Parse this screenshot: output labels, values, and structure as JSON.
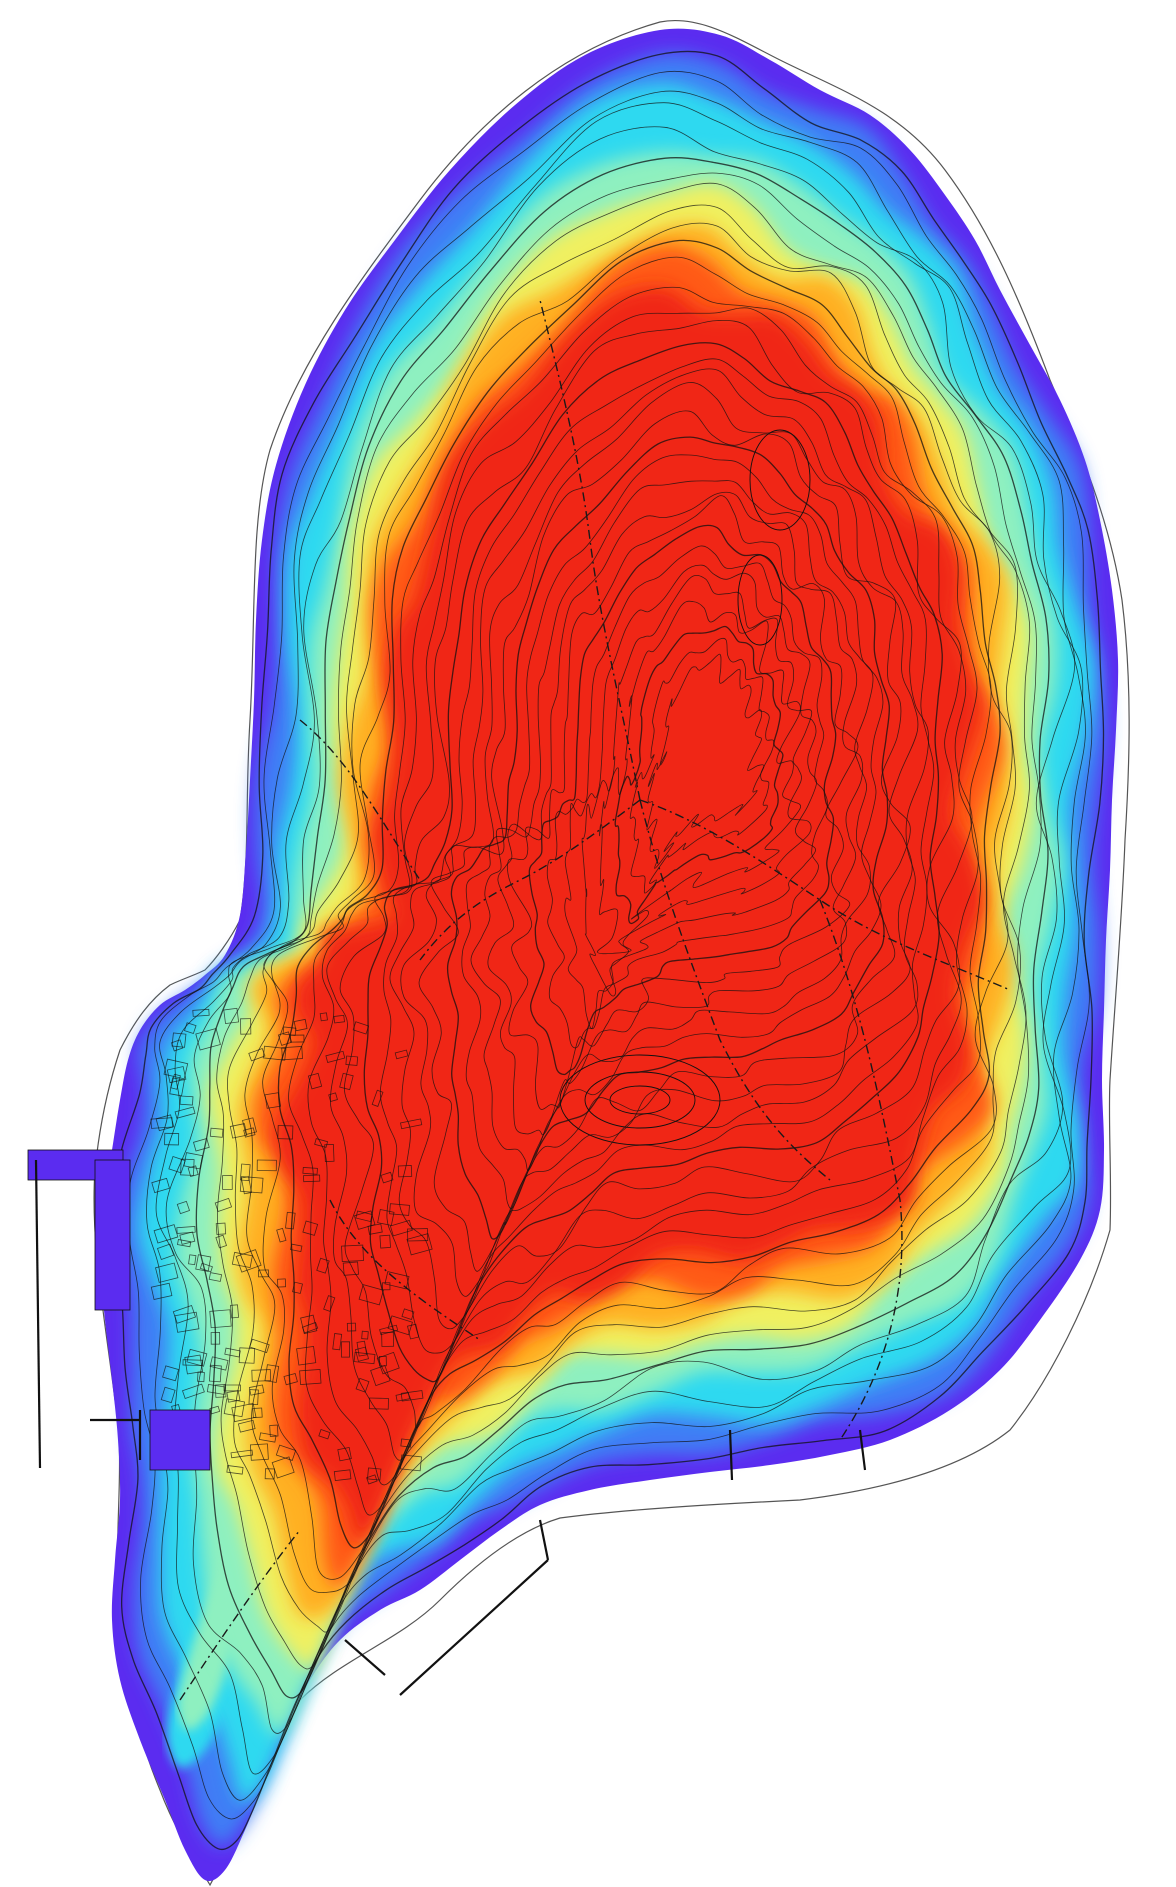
{
  "map": {
    "type": "elevation-heatmap-with-contours",
    "palette": {
      "background": "#ffffff",
      "outline": "#555555",
      "contour": "#111111",
      "track": "#1a1a1a",
      "elev_0": "#5b2cf0",
      "elev_1": "#3f7df5",
      "elev_2": "#2ed9f0",
      "elev_3": "#8ef0c0",
      "elev_4": "#f0f060",
      "elev_5": "#ffb020",
      "elev_6": "#ff5a18",
      "elev_7": "#f02818"
    },
    "layers": [
      "island-elevation-fill",
      "contour-lines",
      "dashed-tracks",
      "village-buildings",
      "piers"
    ],
    "text_labels": []
  }
}
